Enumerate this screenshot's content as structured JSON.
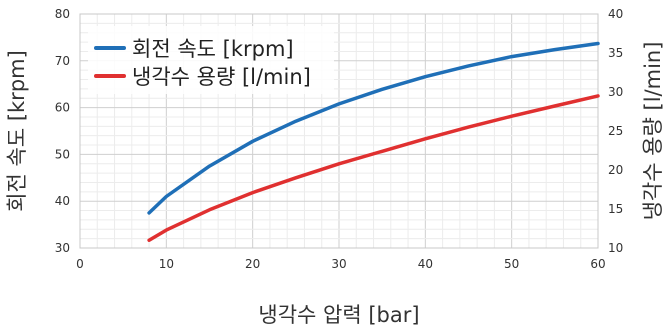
{
  "chart_data": {
    "type": "line",
    "xlabel": "냉각수 압력 [bar]",
    "ylabel_left": "회전 속도 [krpm]",
    "ylabel_right": "냉각수 용량 [l/min]",
    "xlim": [
      0,
      60
    ],
    "ylim_left": [
      30,
      80
    ],
    "ylim_right": [
      10,
      40
    ],
    "x_ticks": [
      0,
      10,
      20,
      30,
      40,
      50,
      60
    ],
    "y_ticks_left": [
      30,
      40,
      50,
      60,
      70,
      80
    ],
    "y_ticks_right": [
      10,
      15,
      20,
      25,
      30,
      35,
      40
    ],
    "grid": true,
    "legend_position": "top-left",
    "series": [
      {
        "name": "회전 속도 [krpm]",
        "axis": "left",
        "color": "#1f6fb7",
        "x": [
          8,
          10,
          15,
          20,
          25,
          30,
          35,
          40,
          45,
          50,
          55,
          60
        ],
        "y": [
          37.5,
          41.0,
          47.5,
          52.8,
          57.1,
          60.8,
          63.9,
          66.6,
          68.9,
          70.9,
          72.4,
          73.7
        ]
      },
      {
        "name": "냉각수 용량 [l/min]",
        "axis": "right",
        "color": "#e03030",
        "x": [
          8,
          10,
          15,
          20,
          25,
          30,
          35,
          40,
          45,
          50,
          55,
          60
        ],
        "y": [
          11.0,
          12.3,
          14.9,
          17.1,
          19.0,
          20.8,
          22.4,
          24.0,
          25.5,
          26.9,
          28.2,
          29.5
        ]
      }
    ]
  }
}
